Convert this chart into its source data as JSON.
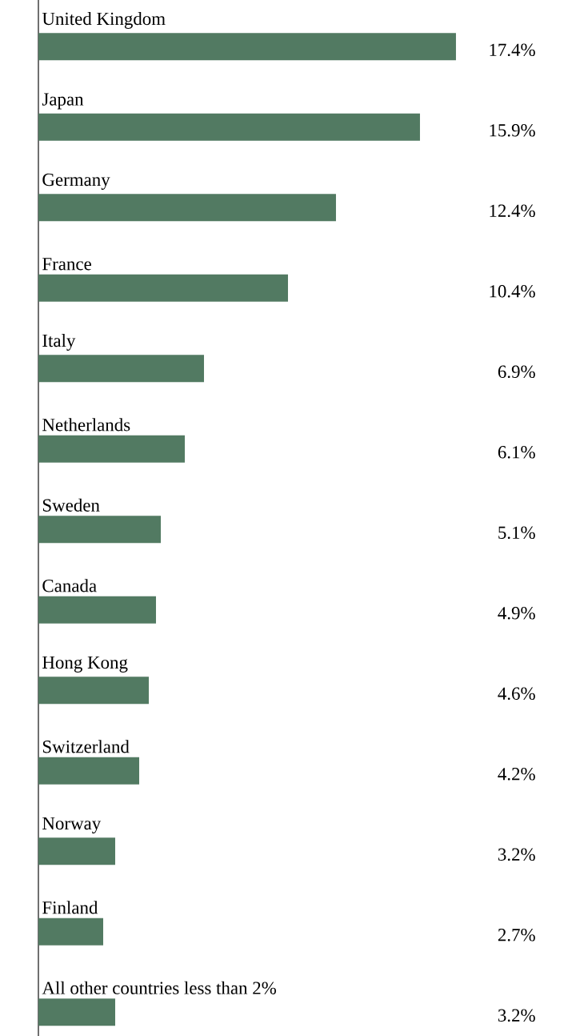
{
  "chart_data": {
    "type": "bar",
    "orientation": "horizontal",
    "categories": [
      "United Kingdom",
      "Japan",
      "Germany",
      "France",
      "Italy",
      "Netherlands",
      "Sweden",
      "Canada",
      "Hong Kong",
      "Switzerland",
      "Norway",
      "Finland",
      "All other countries less than 2%"
    ],
    "values": [
      17.4,
      15.9,
      12.4,
      10.4,
      6.9,
      6.1,
      5.1,
      4.9,
      4.6,
      4.2,
      3.2,
      2.7,
      3.2
    ],
    "value_labels": [
      "17.4%",
      "15.9%",
      "12.4%",
      "10.4%",
      "6.9%",
      "6.1%",
      "5.1%",
      "4.9%",
      "4.6%",
      "4.2%",
      "3.2%",
      "2.7%",
      "3.2%"
    ],
    "color": "#527a62"
  }
}
